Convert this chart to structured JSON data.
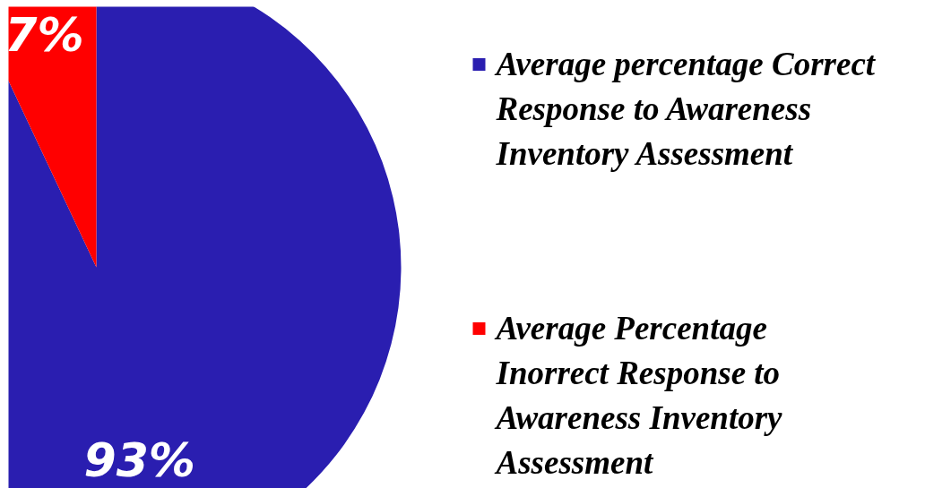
{
  "chart_data": {
    "type": "pie",
    "categories": [
      "Average percentage Correct Response to Awareness Inventory Assessment",
      "Average Percentage Inorrect Response to Awareness Inventory Assessment"
    ],
    "values": [
      93,
      7
    ],
    "colors": [
      "#2a1eb0",
      "#ff0000"
    ],
    "value_labels": [
      "93%",
      "7%"
    ],
    "legend": "right"
  }
}
